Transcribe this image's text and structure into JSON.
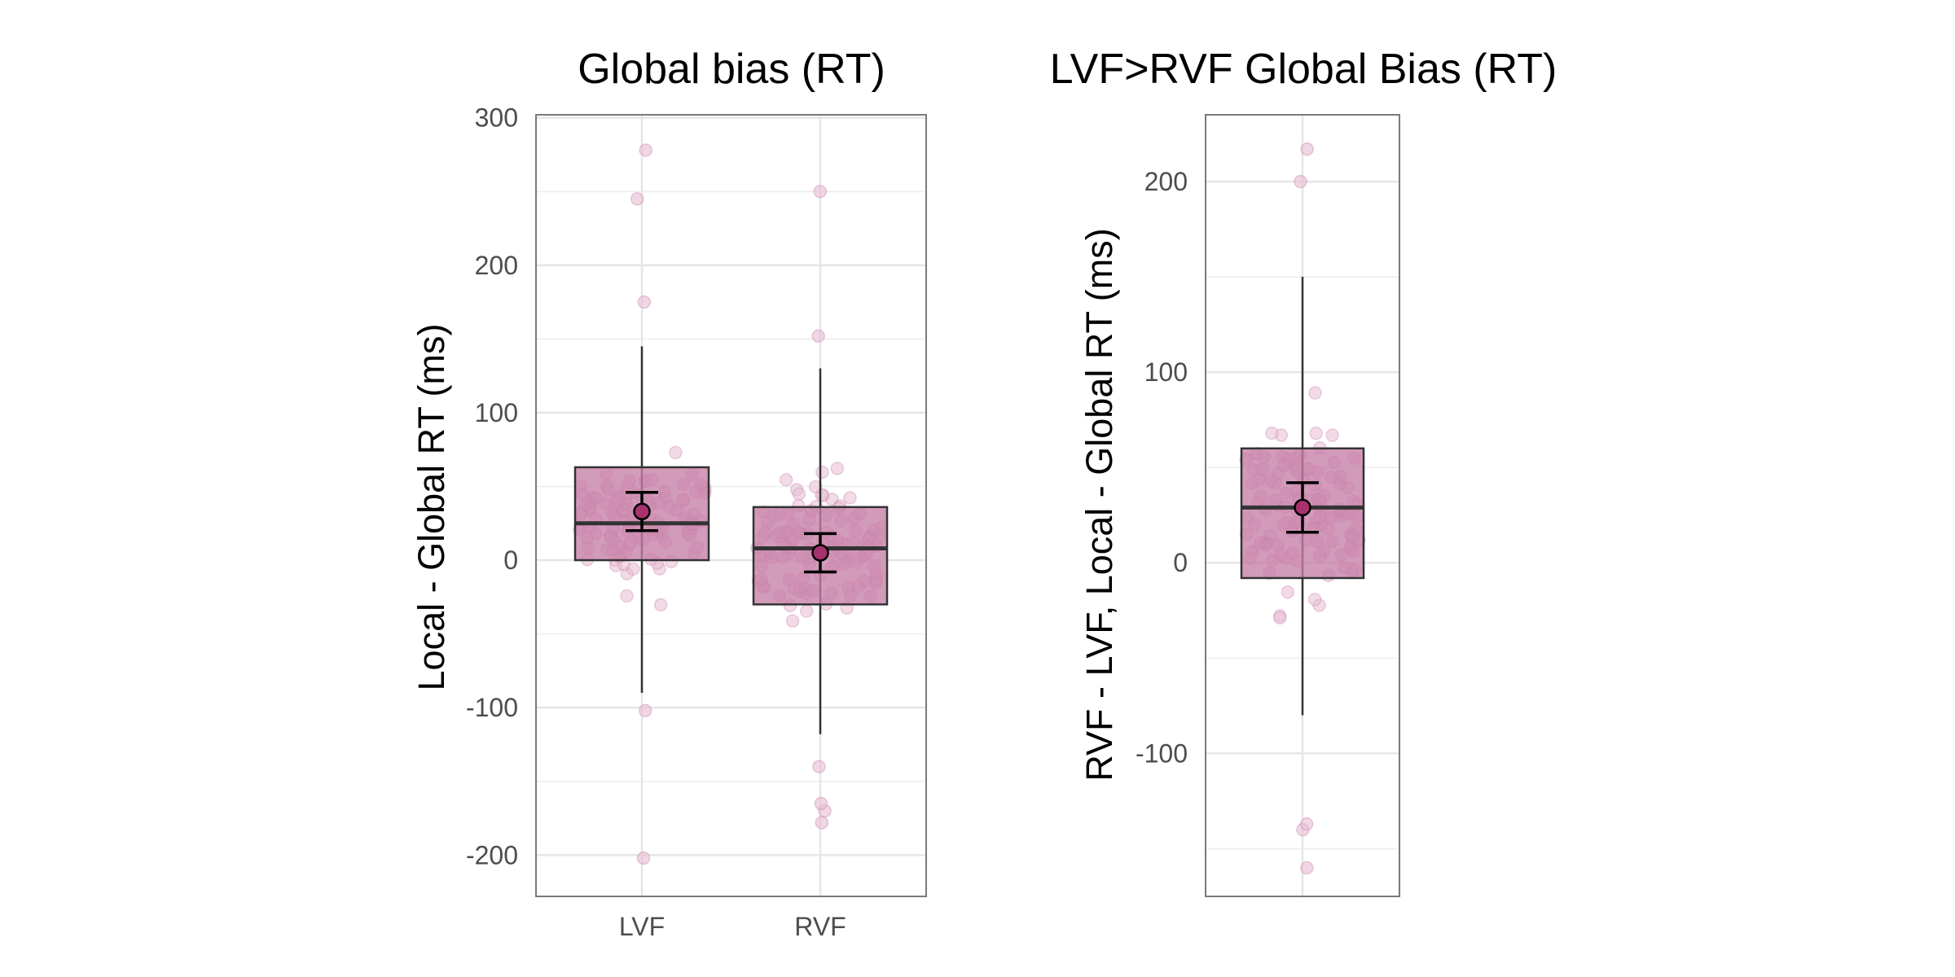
{
  "colors": {
    "box_fill": "#c67fa6",
    "box_stroke": "#333333",
    "point_fill": "#e7bdd3",
    "mean_fill": "#a8326e",
    "whisker": "#000000"
  },
  "chart_data": [
    {
      "type": "box",
      "title": "Global bias (RT)",
      "xlabel": "",
      "ylabel": "Local - Global RT (ms)",
      "categories": [
        "LVF",
        "RVF"
      ],
      "ylim": [
        -228,
        302
      ],
      "yticks": [
        -200,
        -100,
        0,
        100,
        200,
        300
      ],
      "grid": true,
      "boxes": [
        {
          "category": "LVF",
          "q1": 0,
          "median": 25,
          "q3": 63,
          "whisker_low": -90,
          "whisker_high": 145,
          "mean": 33,
          "ci_low": 20,
          "ci_high": 46
        },
        {
          "category": "RVF",
          "q1": -30,
          "median": 8,
          "q3": 36,
          "whisker_low": -118,
          "whisker_high": 130,
          "mean": 5,
          "ci_low": -8,
          "ci_high": 18
        }
      ],
      "outliers": {
        "LVF": [
          -202,
          -102,
          175,
          245,
          278
        ],
        "RVF": [
          -178,
          -170,
          -165,
          -140,
          152,
          250
        ]
      }
    },
    {
      "type": "box",
      "title": "LVF>RVF Global Bias (RT)",
      "xlabel": "",
      "ylabel": "RVF - LVF, Local - Global RT (ms)",
      "categories": [
        ""
      ],
      "ylim": [
        -175,
        235
      ],
      "yticks": [
        -100,
        0,
        100,
        200
      ],
      "grid": true,
      "boxes": [
        {
          "category": "",
          "q1": -8,
          "median": 29,
          "q3": 60,
          "whisker_low": -80,
          "whisker_high": 150,
          "mean": 29,
          "ci_low": 16,
          "ci_high": 42
        }
      ],
      "outliers": {
        "": [
          -160,
          -140,
          -137,
          200,
          217
        ]
      }
    }
  ]
}
